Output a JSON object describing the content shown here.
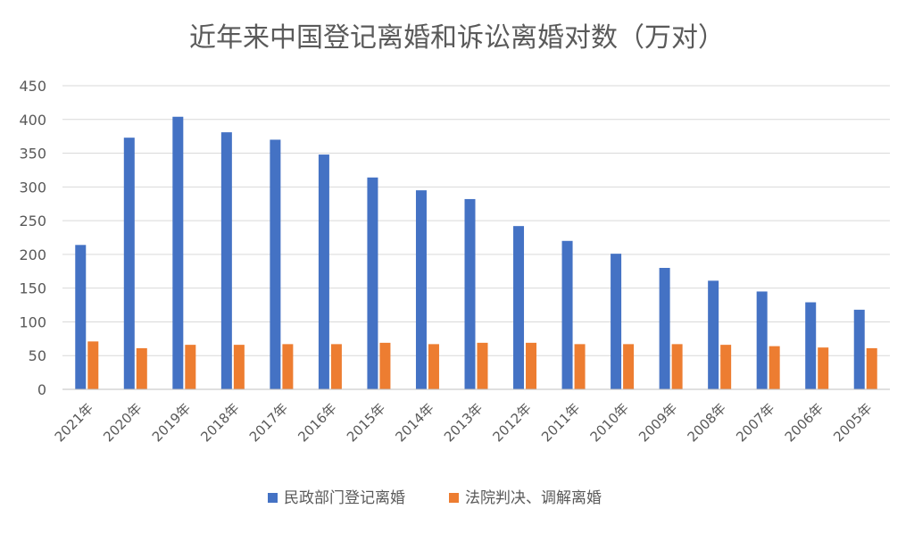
{
  "chart_data": {
    "type": "bar",
    "title": "近年来中国登记离婚和诉讼离婚对数（万对）",
    "xlabel": "",
    "ylabel": "",
    "ylim": [
      0,
      450
    ],
    "yticks": [
      0,
      50,
      100,
      150,
      200,
      250,
      300,
      350,
      400,
      450
    ],
    "grid": true,
    "legend_position": "bottom",
    "categories": [
      "2021年",
      "2020年",
      "2019年",
      "2018年",
      "2017年",
      "2016年",
      "2015年",
      "2014年",
      "2013年",
      "2012年",
      "2011年",
      "2010年",
      "2009年",
      "2008年",
      "2007年",
      "2006年",
      "2005年"
    ],
    "series": [
      {
        "name": "民政部门登记离婚",
        "color": "#4472c4",
        "values": [
          214,
          373,
          404,
          381,
          370,
          348,
          314,
          295,
          282,
          242,
          220,
          201,
          180,
          161,
          145,
          129,
          118
        ]
      },
      {
        "name": "法院判决、调解离婚",
        "color": "#ed7d31",
        "values": [
          71,
          61,
          66,
          66,
          67,
          67,
          69,
          67,
          69,
          69,
          67,
          67,
          67,
          66,
          64,
          62,
          61
        ]
      }
    ]
  }
}
